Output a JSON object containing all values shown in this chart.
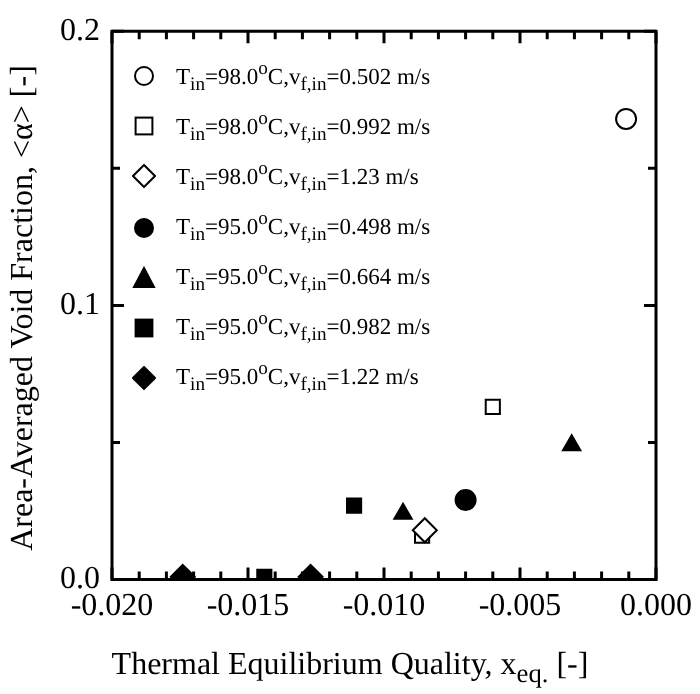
{
  "chart_data": {
    "type": "scatter",
    "xlabel": "Thermal Equilibrium Quality,  x$_{eq.}$  [-]",
    "ylabel": "Area-Averaged Void Fraction,  <α>  [-]",
    "xlim": [
      -0.02,
      0
    ],
    "ylim": [
      0,
      0.2
    ],
    "xticks": [
      {
        "value": -0.02,
        "label": "-0.020"
      },
      {
        "value": -0.019,
        "label": null
      },
      {
        "value": -0.018,
        "label": null
      },
      {
        "value": -0.017,
        "label": null
      },
      {
        "value": -0.016,
        "label": null
      },
      {
        "value": -0.015,
        "label": "-0.015"
      },
      {
        "value": -0.014,
        "label": null
      },
      {
        "value": -0.013,
        "label": null
      },
      {
        "value": -0.012,
        "label": null
      },
      {
        "value": -0.011,
        "label": null
      },
      {
        "value": -0.01,
        "label": "-0.010"
      },
      {
        "value": -0.009,
        "label": null
      },
      {
        "value": -0.008,
        "label": null
      },
      {
        "value": -0.007,
        "label": null
      },
      {
        "value": -0.006,
        "label": null
      },
      {
        "value": -0.005,
        "label": "-0.005"
      },
      {
        "value": -0.004,
        "label": null
      },
      {
        "value": -0.003,
        "label": null
      },
      {
        "value": -0.002,
        "label": null
      },
      {
        "value": -0.001,
        "label": null
      },
      {
        "value": 0,
        "label": "0.000"
      }
    ],
    "yticks": [
      {
        "value": 0,
        "label": "0.0"
      },
      {
        "value": 0.05,
        "label": null
      },
      {
        "value": 0.1,
        "label": "0.1"
      },
      {
        "value": 0.15,
        "label": null
      },
      {
        "value": 0.2,
        "label": "0.2"
      }
    ],
    "legend": "top left",
    "series": [
      {
        "name": "T$_{in}$=98.0$^{o}$C,v$_{f,in}$=0.502 m/s",
        "marker": "circle",
        "color": "#ffffff",
        "x": [
          -0.0011
        ],
        "values": [
          0.168
        ]
      },
      {
        "name": "T$_{in}$=98.0$^{o}$C,v$_{f,in}$=0.992 m/s",
        "marker": "square",
        "color": "#ffffff",
        "x": [
          -0.006,
          -0.0086
        ],
        "values": [
          0.063,
          0.016
        ]
      },
      {
        "name": "T$_{in}$=98.0$^{o}$C,v$_{f,in}$=1.23 m/s",
        "marker": "diamond",
        "color": "#ffffff",
        "x": [
          -0.0085
        ],
        "values": [
          0.018
        ]
      },
      {
        "name": "T$_{in}$=95.0$^{o}$C,v$_{f,in}$=0.498 m/s",
        "marker": "circle",
        "color": "#000000",
        "x": [
          -0.007
        ],
        "values": [
          0.029
        ]
      },
      {
        "name": "T$_{in}$=95.0$^{o}$C,v$_{f,in}$=0.664 m/s",
        "marker": "triangle",
        "color": "#000000",
        "x": [
          -0.0031,
          -0.0093
        ],
        "values": [
          0.049,
          0.024
        ]
      },
      {
        "name": "T$_{in}$=95.0$^{o}$C,v$_{f,in}$=0.982 m/s",
        "marker": "square",
        "color": "#000000",
        "x": [
          -0.0111,
          -0.0144
        ],
        "values": [
          0.027,
          0.001
        ]
      },
      {
        "name": "T$_{in}$=95.0$^{o}$C,v$_{f,in}$=1.22 m/s",
        "marker": "diamond",
        "color": "#000000",
        "x": [
          -0.0174,
          -0.0127
        ],
        "values": [
          0.001,
          0.001
        ]
      }
    ]
  }
}
